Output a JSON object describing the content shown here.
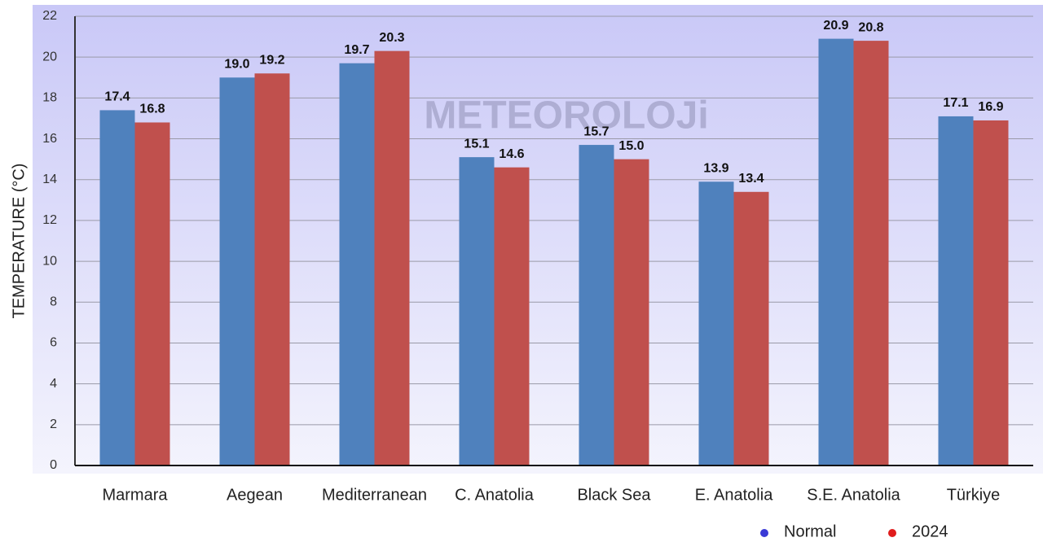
{
  "chart_data": {
    "type": "bar",
    "ylabel": "TEMPERATURE (°C)",
    "watermark": "METEOROLOJi",
    "categories": [
      "Marmara",
      "Aegean",
      "Mediterranean",
      "C. Anatolia",
      "Black Sea",
      "E. Anatolia",
      "S.E. Anatolia",
      "Türkiye"
    ],
    "series": [
      {
        "name": "Normal",
        "color": "#4f81bd",
        "marker_color": "#3a3ad6",
        "values": [
          17.4,
          19.0,
          19.7,
          15.1,
          15.7,
          13.9,
          20.9,
          17.1
        ],
        "value_labels": [
          "17.4",
          "19.0",
          "19.7",
          "15.1",
          "15.7",
          "13.9",
          "20.9",
          "17.1"
        ]
      },
      {
        "name": "2024",
        "color": "#c0504d",
        "marker_color": "#e01c1c",
        "values": [
          16.8,
          19.2,
          20.3,
          14.6,
          15.0,
          13.4,
          20.8,
          16.9
        ],
        "value_labels": [
          "16.8",
          "19.2",
          "20.3",
          "14.6",
          "15.0",
          "13.4",
          "20.8",
          "16.9"
        ]
      }
    ],
    "ylim": [
      0,
      22
    ],
    "yticks": [
      0,
      2,
      4,
      6,
      8,
      10,
      12,
      14,
      16,
      18,
      20,
      22
    ],
    "grid": true,
    "legend": "bottom-right"
  }
}
